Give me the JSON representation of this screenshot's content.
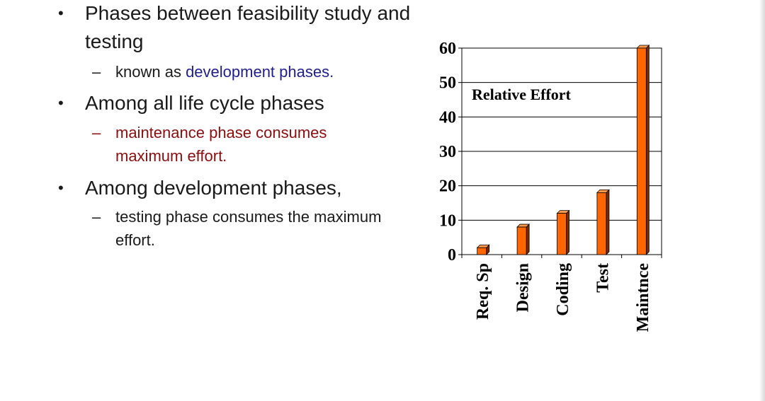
{
  "bullets": [
    {
      "line1": "Phases between feasibility study and",
      "line2": "testing",
      "sub": {
        "dash": "–",
        "prefix": "known as ",
        "highlight": "development phases."
      }
    },
    {
      "line1": "Among all life cycle phases",
      "sub": {
        "dash": "–",
        "line1": "maintenance phase consumes",
        "line2": "maximum effort."
      }
    },
    {
      "line1": "Among development phases,",
      "sub": {
        "dash": "–",
        "line1": "testing phase consumes the maximum",
        "line2": "effort."
      }
    }
  ],
  "bullet_glyph": "•",
  "colors": {
    "bar_fill": "#ff6600",
    "bar_highlight": "#ff9a4d",
    "bar_edge": "#7a2a00",
    "text_blue": "#1f1f8c",
    "text_red": "#8b0e0e"
  },
  "chart_data": {
    "type": "bar",
    "title": "Relative Effort",
    "categories": [
      "Req. Sp",
      "Design",
      "Coding",
      "Test",
      "Maintnce"
    ],
    "values": [
      2,
      8,
      12,
      18,
      60
    ],
    "ylim": [
      0,
      60
    ],
    "yticks": [
      "0",
      "10",
      "20",
      "30",
      "40",
      "50",
      "60"
    ],
    "grid": true,
    "bar_style": "3d"
  }
}
